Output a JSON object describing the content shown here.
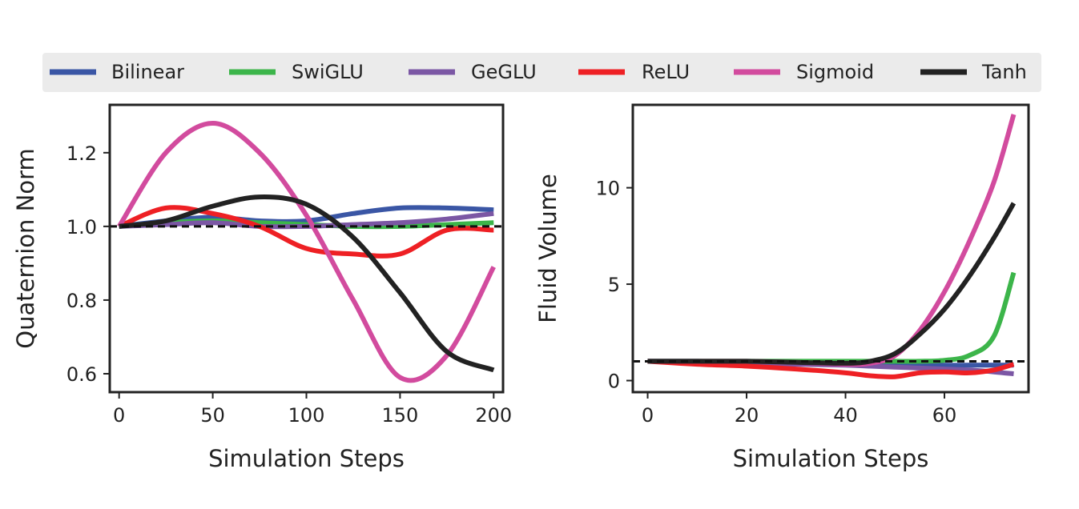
{
  "legend": {
    "entries": [
      {
        "name": "Bilinear",
        "color": "#3a56a5"
      },
      {
        "name": "SwiGLU",
        "color": "#3cb54a"
      },
      {
        "name": "GeGLU",
        "color": "#7b57a4"
      },
      {
        "name": "ReLU",
        "color": "#ee2024"
      },
      {
        "name": "Sigmoid",
        "color": "#d24b9e"
      },
      {
        "name": "Tanh",
        "color": "#222222"
      }
    ]
  },
  "chart_data": [
    {
      "type": "line",
      "title": "",
      "xlabel": "Simulation Steps",
      "ylabel": "Quaternion Norm",
      "xlim": [
        -5,
        205
      ],
      "ylim": [
        0.55,
        1.33
      ],
      "xticks": [
        0,
        50,
        100,
        150,
        200
      ],
      "yticks": [
        0.6,
        0.8,
        1.0,
        1.2
      ],
      "ytick_labels": [
        "0.6",
        "0.8",
        "1.0",
        "1.2"
      ],
      "reference_line": 1.0,
      "x": [
        0,
        25,
        50,
        75,
        100,
        125,
        150,
        175,
        200
      ],
      "series": [
        {
          "name": "Bilinear",
          "values": [
            1.0,
            1.015,
            1.025,
            1.015,
            1.015,
            1.035,
            1.05,
            1.05,
            1.045
          ]
        },
        {
          "name": "SwiGLU",
          "values": [
            1.0,
            1.01,
            1.015,
            1.01,
            1.005,
            1.0,
            1.0,
            1.005,
            1.01
          ]
        },
        {
          "name": "GeGLU",
          "values": [
            1.0,
            1.005,
            1.01,
            1.0,
            1.0,
            1.005,
            1.01,
            1.02,
            1.035
          ]
        },
        {
          "name": "ReLU",
          "values": [
            1.0,
            1.05,
            1.035,
            1.0,
            0.94,
            0.925,
            0.925,
            0.99,
            0.99
          ]
        },
        {
          "name": "Sigmoid",
          "values": [
            1.0,
            1.2,
            1.28,
            1.2,
            1.03,
            0.8,
            0.59,
            0.65,
            0.89
          ]
        },
        {
          "name": "Tanh",
          "values": [
            1.0,
            1.015,
            1.055,
            1.08,
            1.06,
            0.97,
            0.82,
            0.66,
            0.61
          ]
        }
      ]
    },
    {
      "type": "line",
      "title": "",
      "xlabel": "Simulation Steps",
      "ylabel": "Fluid Volume",
      "xlim": [
        -3,
        77
      ],
      "ylim": [
        -0.6,
        14.3
      ],
      "xticks": [
        0,
        20,
        40,
        60
      ],
      "yticks": [
        0,
        5,
        10
      ],
      "ytick_labels": [
        "0",
        "5",
        "10"
      ],
      "reference_line": 1.0,
      "x": [
        0,
        10,
        20,
        30,
        40,
        45,
        50,
        55,
        60,
        65,
        70,
        74
      ],
      "series": [
        {
          "name": "Bilinear",
          "values": [
            1.0,
            1.0,
            0.95,
            0.9,
            0.85,
            0.85,
            0.85,
            0.85,
            0.8,
            0.8,
            0.8,
            0.8
          ]
        },
        {
          "name": "SwiGLU",
          "values": [
            1.0,
            1.0,
            1.0,
            1.0,
            1.0,
            1.0,
            1.0,
            1.0,
            1.05,
            1.3,
            2.3,
            5.6
          ]
        },
        {
          "name": "GeGLU",
          "values": [
            1.0,
            0.95,
            0.9,
            0.85,
            0.8,
            0.75,
            0.7,
            0.65,
            0.6,
            0.55,
            0.45,
            0.35
          ]
        },
        {
          "name": "ReLU",
          "values": [
            1.0,
            0.85,
            0.75,
            0.6,
            0.4,
            0.25,
            0.2,
            0.4,
            0.45,
            0.4,
            0.55,
            0.85
          ]
        },
        {
          "name": "Sigmoid",
          "values": [
            1.0,
            1.0,
            1.0,
            0.95,
            0.85,
            0.9,
            1.3,
            2.6,
            4.6,
            7.2,
            10.3,
            13.8
          ]
        },
        {
          "name": "Tanh",
          "values": [
            1.0,
            1.0,
            1.0,
            0.95,
            0.9,
            1.0,
            1.4,
            2.4,
            3.7,
            5.4,
            7.4,
            9.2
          ]
        }
      ]
    }
  ]
}
